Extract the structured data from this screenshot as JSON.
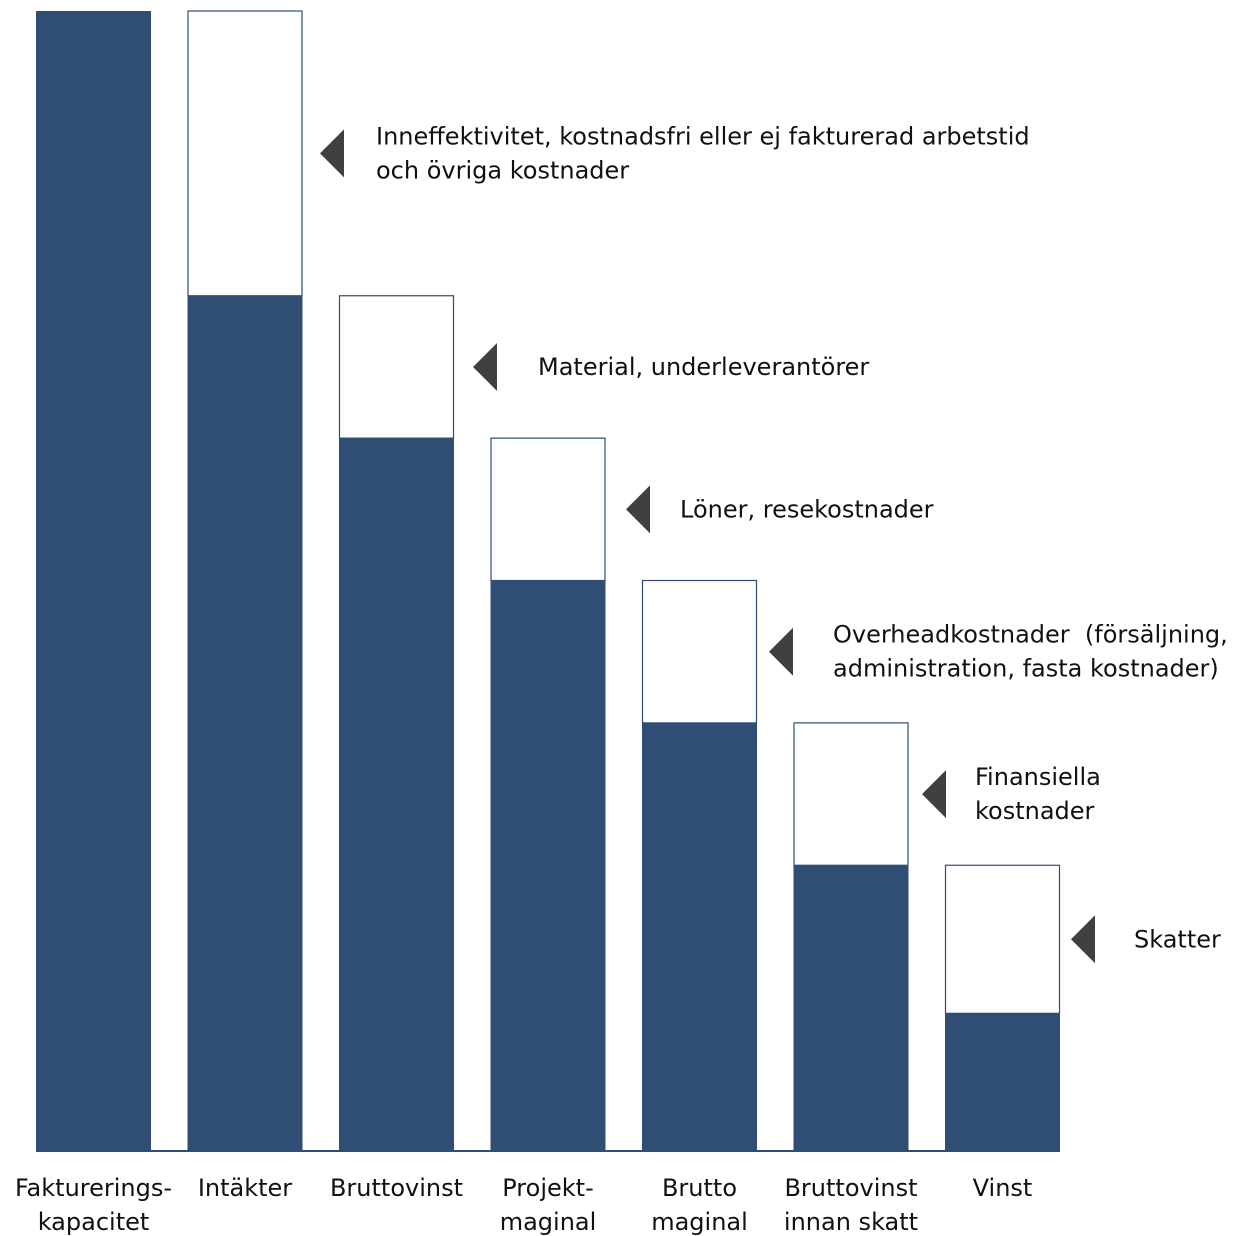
{
  "chart_data": {
    "type": "bar",
    "variant": "waterfall",
    "title": "",
    "xlabel": "",
    "ylabel": "",
    "ylim": [
      0,
      100
    ],
    "grid": false,
    "legend": "none",
    "colors": {
      "bar": "#304e73",
      "bar_edge": "#304e73",
      "marker": "#404040"
    },
    "categories": [
      {
        "lines": [
          "Fakturerings-",
          "kapacitet"
        ],
        "value": 100
      },
      {
        "lines": [
          "Intäkter"
        ],
        "value": 75
      },
      {
        "lines": [
          "Bruttovinst"
        ],
        "value": 62.5
      },
      {
        "lines": [
          "Projekt-",
          "maginal"
        ],
        "value": 50
      },
      {
        "lines": [
          "Brutto",
          "maginal"
        ],
        "value": 37.5
      },
      {
        "lines": [
          "Bruttovinst",
          "innan skatt"
        ],
        "value": 25
      },
      {
        "lines": [
          "Vinst"
        ],
        "value": 12
      }
    ],
    "deductions": [
      {
        "category_index": 1,
        "from": 100,
        "to": 75,
        "lines": [
          "Inneffektivitet, kostnadsfri eller ej fakturerad arbetstid",
          "och övriga kostnader"
        ]
      },
      {
        "category_index": 2,
        "from": 75,
        "to": 62.5,
        "lines": [
          "Material, underleverantörer"
        ]
      },
      {
        "category_index": 3,
        "from": 62.5,
        "to": 50,
        "lines": [
          "Löner, resekostnader"
        ]
      },
      {
        "category_index": 4,
        "from": 50,
        "to": 37.5,
        "lines": [
          "Overheadkostnader  (försäljning,",
          "administration, fasta kostnader)"
        ]
      },
      {
        "category_index": 5,
        "from": 37.5,
        "to": 25,
        "lines": [
          "Finansiella",
          "kostnader"
        ]
      },
      {
        "category_index": 6,
        "from": 25,
        "to": 12,
        "lines": [
          "Skatter"
        ]
      }
    ]
  }
}
